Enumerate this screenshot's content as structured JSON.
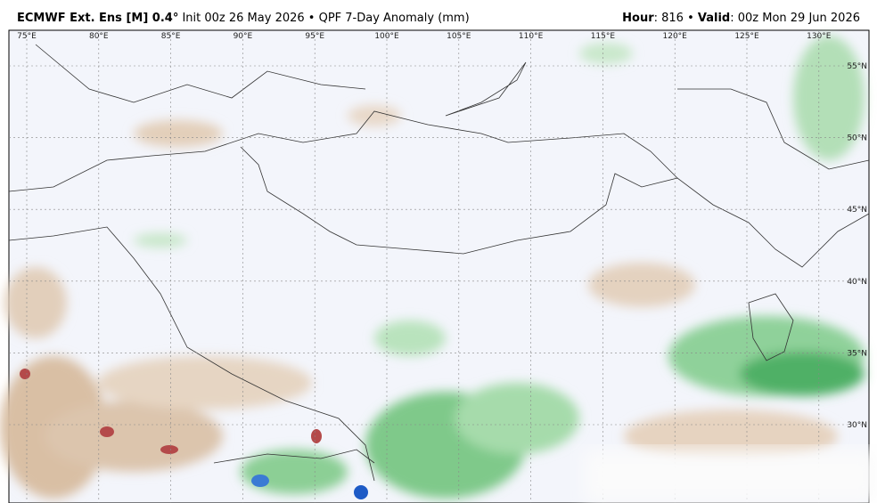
{
  "header": {
    "model": "ECMWF Ext. Ens [M] 0.4°",
    "init": "Init 00z 26 May 2026",
    "product": "QPF 7-Day Anomaly (mm)",
    "hour_label": "Hour",
    "hour": ": 816",
    "valid_label": "Valid",
    "valid": ": 00z Mon 29 Jun 2026"
  },
  "map": {
    "lon_labels": [
      "75°E",
      "80°E",
      "85°E",
      "90°E",
      "95°E",
      "100°E",
      "105°E",
      "110°E",
      "115°E",
      "120°E",
      "125°E",
      "130°E"
    ],
    "lat_labels": [
      "55°N",
      "50°N",
      "45°N",
      "40°N",
      "35°N",
      "30°N"
    ]
  }
}
